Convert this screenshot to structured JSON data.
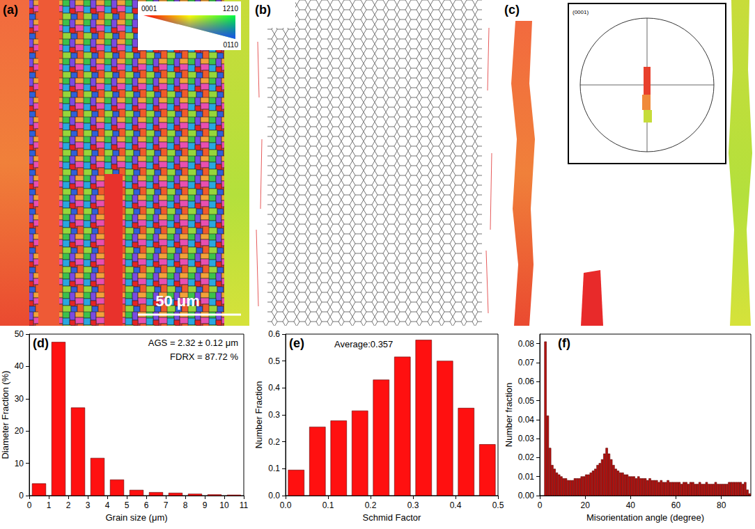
{
  "panels": [
    {
      "label": "(a)",
      "scale_bar": "50 μm",
      "color_key": [
        "0001",
        "1210",
        "0110"
      ]
    },
    {
      "label": "(b)"
    },
    {
      "label": "(c)",
      "pole_figure": "(0001)"
    }
  ],
  "chart_data": [
    {
      "type": "histogram",
      "label": "(d)",
      "annotations": [
        "AGS = 2.32 ± 0.12 μm",
        "FDRX = 87.72 %"
      ],
      "x_label": "Grain size (μm)",
      "y_label": "Diameter Fraction (%)",
      "bins": [
        0,
        1,
        2,
        3,
        4,
        5,
        6,
        7,
        8,
        9,
        10,
        11
      ],
      "counts": [
        3.7,
        47.5,
        27.2,
        11.6,
        4.9,
        1.7,
        1.0,
        0.8,
        0.5,
        0.3,
        0.2
      ],
      "color": "#ff1010",
      "grid": false,
      "xlim": [
        0,
        11
      ],
      "ylim": [
        0,
        50
      ],
      "xticks": [
        0,
        1,
        2,
        3,
        4,
        5,
        6,
        7,
        8,
        9,
        10,
        11
      ],
      "yticks": [
        0,
        10,
        20,
        30,
        40,
        50
      ]
    },
    {
      "type": "histogram",
      "label": "(e)",
      "annotations": [
        "Average:0.357"
      ],
      "x_label": "Schmid Factor",
      "y_label": "Number Fraction",
      "bins": [
        0,
        0.05,
        0.1,
        0.15,
        0.2,
        0.25,
        0.3,
        0.35,
        0.4,
        0.45,
        0.5
      ],
      "counts": [
        0.095,
        0.255,
        0.278,
        0.315,
        0.43,
        0.515,
        0.578,
        0.5,
        0.325,
        0.19
      ],
      "color": "#ff1010",
      "grid": false,
      "xlim": [
        0,
        0.5
      ],
      "ylim": [
        0,
        0.6
      ],
      "xticks": [
        {
          "value": 0,
          "label": "0.0"
        },
        0.1,
        0.2,
        0.3,
        0.4,
        0.5
      ],
      "yticks": [
        {
          "value": 0,
          "label": "0.0"
        },
        0.1,
        0.2,
        0.3,
        0.4,
        0.5,
        0.6
      ]
    },
    {
      "type": "histogram",
      "label": "(f)",
      "x_label": "Misorientation angle (degree)",
      "y_label": "Number fraction",
      "bins": [
        2,
        3,
        4,
        5,
        6,
        7,
        8,
        9,
        10,
        11,
        12,
        13,
        14,
        15,
        16,
        17,
        18,
        19,
        20,
        21,
        22,
        23,
        24,
        25,
        26,
        27,
        28,
        29,
        30,
        31,
        32,
        33,
        34,
        35,
        36,
        37,
        38,
        39,
        40,
        41,
        42,
        43,
        44,
        45,
        46,
        47,
        48,
        49,
        50,
        51,
        52,
        53,
        54,
        55,
        56,
        57,
        58,
        59,
        60,
        61,
        62,
        63,
        64,
        65,
        66,
        67,
        68,
        69,
        70,
        71,
        72,
        73,
        74,
        75,
        76,
        77,
        78,
        79,
        80,
        81,
        82,
        83,
        84,
        85,
        86,
        87,
        88,
        89,
        90,
        91,
        92,
        93
      ],
      "counts": [
        0.081,
        0.042,
        0.025,
        0.016,
        0.014,
        0.012,
        0.011,
        0.01,
        0.009,
        0.009,
        0.008,
        0.008,
        0.008,
        0.009,
        0.009,
        0.009,
        0.01,
        0.01,
        0.011,
        0.011,
        0.012,
        0.013,
        0.014,
        0.016,
        0.017,
        0.019,
        0.022,
        0.025,
        0.022,
        0.019,
        0.016,
        0.014,
        0.013,
        0.012,
        0.012,
        0.011,
        0.011,
        0.01,
        0.01,
        0.01,
        0.009,
        0.01,
        0.009,
        0.009,
        0.009,
        0.008,
        0.009,
        0.008,
        0.008,
        0.008,
        0.007,
        0.008,
        0.007,
        0.007,
        0.008,
        0.007,
        0.007,
        0.007,
        0.007,
        0.007,
        0.006,
        0.007,
        0.007,
        0.006,
        0.007,
        0.007,
        0.006,
        0.006,
        0.007,
        0.006,
        0.006,
        0.007,
        0.006,
        0.006,
        0.006,
        0.007,
        0.006,
        0.006,
        0.006,
        0.006,
        0.006,
        0.007,
        0.007,
        0.007,
        0.007,
        0.007,
        0.007,
        0.006,
        0.007,
        0.003,
        0.001
      ],
      "color": "#b3120f",
      "grid": false,
      "xlim": [
        0,
        93
      ],
      "ylim": [
        0,
        0.085
      ],
      "xticks": [
        0,
        20,
        40,
        60,
        80
      ],
      "yticks": [
        {
          "value": 0,
          "label": "0.00"
        },
        0.01,
        0.02,
        0.03,
        0.04,
        0.05,
        0.06,
        0.07,
        0.08
      ]
    }
  ]
}
